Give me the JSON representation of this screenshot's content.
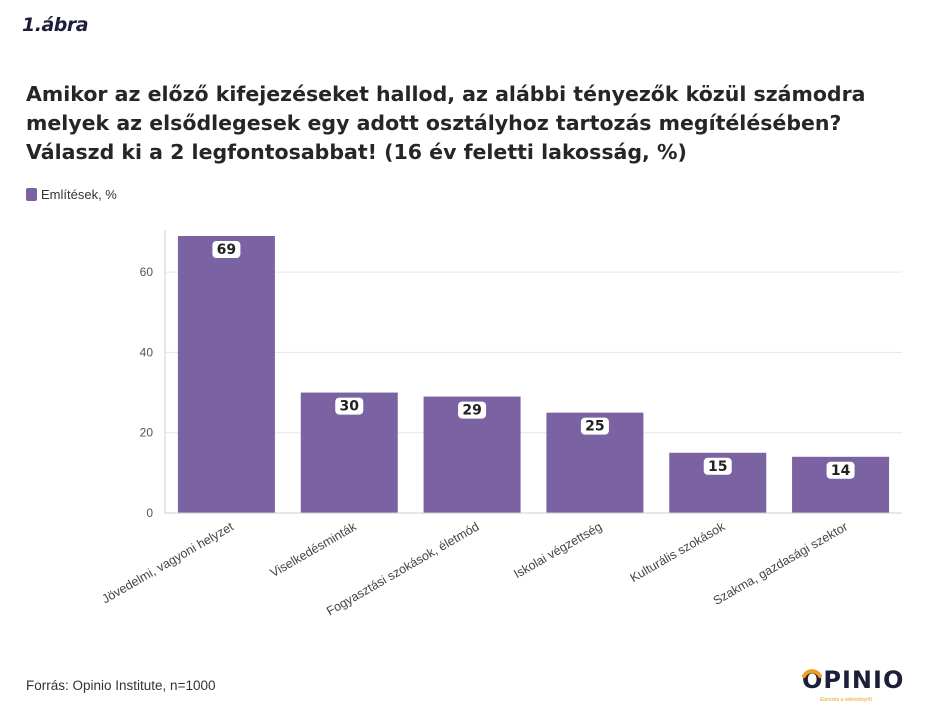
{
  "figure_label": "1.ábra",
  "title": "Amikor az előző kifejezéseket hallod, az alábbi tényezők közül számodra melyek az elsődlegesek egy adott osztályhoz tartozás megítélésében? Válaszd ki a 2 legfontosabbat! (16 év feletti lakosság, %)",
  "legend": {
    "label": "Említések, %",
    "color": "#7a62a3"
  },
  "source": "Forrás: Opinio Institute, n=1000",
  "logo": {
    "text": "OPINIO",
    "tagline": "Elemzés a véleményről",
    "accent": "#f0a020"
  },
  "chart_data": {
    "type": "bar",
    "categories": [
      "Jövedelmi, vagyoni helyzet",
      "Viselkedésminták",
      "Fogyasztási szokások, életmód",
      "Iskolai végzettség",
      "Kulturális szokások",
      "Szakma, gazdasági szektor"
    ],
    "series": [
      {
        "name": "Említések, %",
        "values": [
          69,
          30,
          29,
          25,
          15,
          14
        ]
      }
    ],
    "ylim": [
      0,
      70
    ],
    "yticks": [
      0,
      20,
      40,
      60
    ],
    "grid": true,
    "data_labels": true,
    "bar_color": "#7a62a3",
    "legend_position": "top-left"
  }
}
